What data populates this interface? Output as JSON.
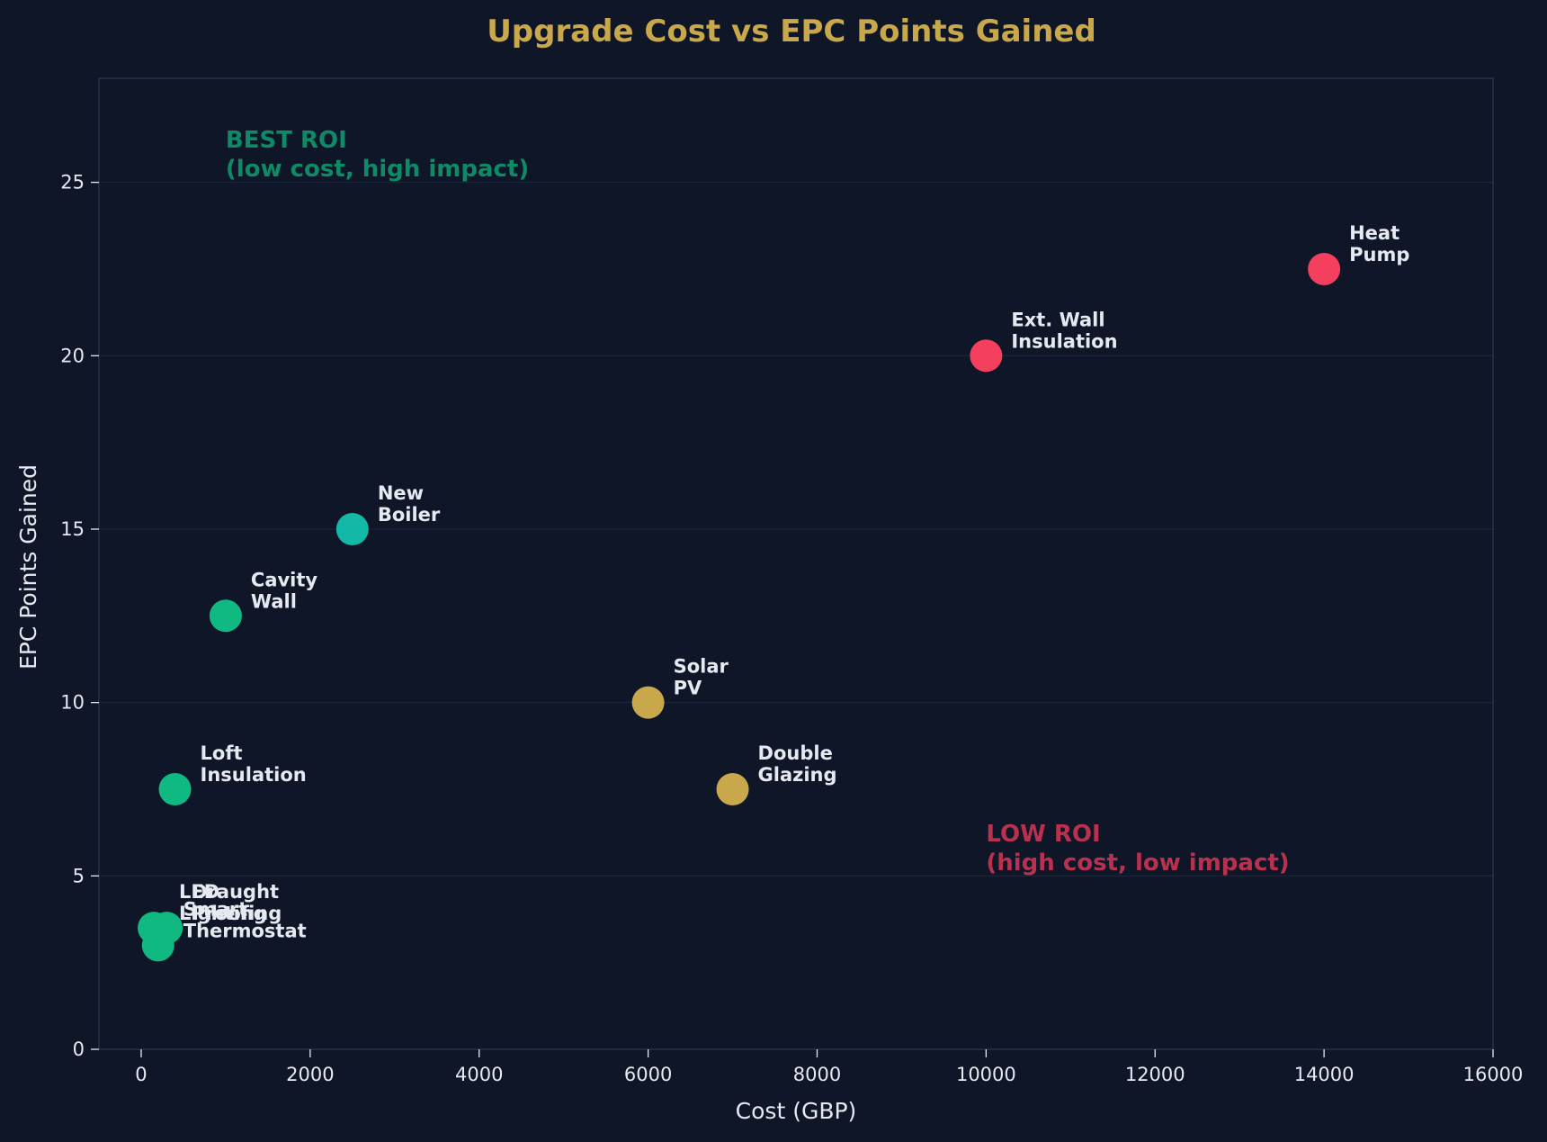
{
  "chart_data": {
    "type": "scatter",
    "title": "Upgrade Cost vs EPC Points Gained",
    "xlabel": "Cost (GBP)",
    "ylabel": "EPC Points Gained",
    "xlim": [
      -500,
      16000
    ],
    "ylim": [
      0,
      28
    ],
    "xticks": [
      0,
      2000,
      4000,
      6000,
      8000,
      10000,
      12000,
      14000,
      16000
    ],
    "yticks": [
      0,
      5,
      10,
      15,
      20,
      25
    ],
    "grid": "horizontal",
    "points": [
      {
        "name": "Loft Insulation",
        "label_lines": [
          "Loft",
          "Insulation"
        ],
        "x": 400,
        "y": 7.5,
        "color": "#10b981"
      },
      {
        "name": "Cavity Wall",
        "label_lines": [
          "Cavity",
          "Wall"
        ],
        "x": 1000,
        "y": 12.5,
        "color": "#10b981"
      },
      {
        "name": "New Boiler",
        "label_lines": [
          "New",
          "Boiler"
        ],
        "x": 2500,
        "y": 15,
        "color": "#14b8a6"
      },
      {
        "name": "Solar PV",
        "label_lines": [
          "Solar",
          "PV"
        ],
        "x": 6000,
        "y": 10,
        "color": "#c9a84c"
      },
      {
        "name": "Double Glazing",
        "label_lines": [
          "Double",
          "Glazing"
        ],
        "x": 7000,
        "y": 7.5,
        "color": "#c9a84c"
      },
      {
        "name": "Ext. Wall Insulation",
        "label_lines": [
          "Ext. Wall",
          "Insulation"
        ],
        "x": 10000,
        "y": 20,
        "color": "#f43f5e"
      },
      {
        "name": "Heat Pump",
        "label_lines": [
          "Heat",
          "Pump"
        ],
        "x": 14000,
        "y": 22.5,
        "color": "#f43f5e"
      },
      {
        "name": "LED Lighting",
        "label_lines": [
          "LED",
          "Lighting"
        ],
        "x": 150,
        "y": 3.5,
        "color": "#10b981"
      },
      {
        "name": "Draught Proofing",
        "label_lines": [
          "Draught",
          "Proofing"
        ],
        "x": 300,
        "y": 3.5,
        "color": "#10b981"
      },
      {
        "name": "Smart Thermostat",
        "label_lines": [
          "Smart",
          "Thermostat"
        ],
        "x": 200,
        "y": 3,
        "color": "#10b981"
      }
    ],
    "annotations": [
      {
        "lines": [
          "BEST ROI",
          "(low cost, high impact)"
        ],
        "x": 1000,
        "y": 26,
        "color": "#0e8a66"
      },
      {
        "lines": [
          "LOW ROI",
          "(high cost, low impact)"
        ],
        "x": 10000,
        "y": 6,
        "color": "#b83250"
      }
    ]
  },
  "colors": {
    "background": "#0e1628",
    "plot_border": "#26314a",
    "grid": "#1b2539",
    "text": "#e6e9f0",
    "title": "#c9a84c",
    "label": "#e6e9f0"
  }
}
